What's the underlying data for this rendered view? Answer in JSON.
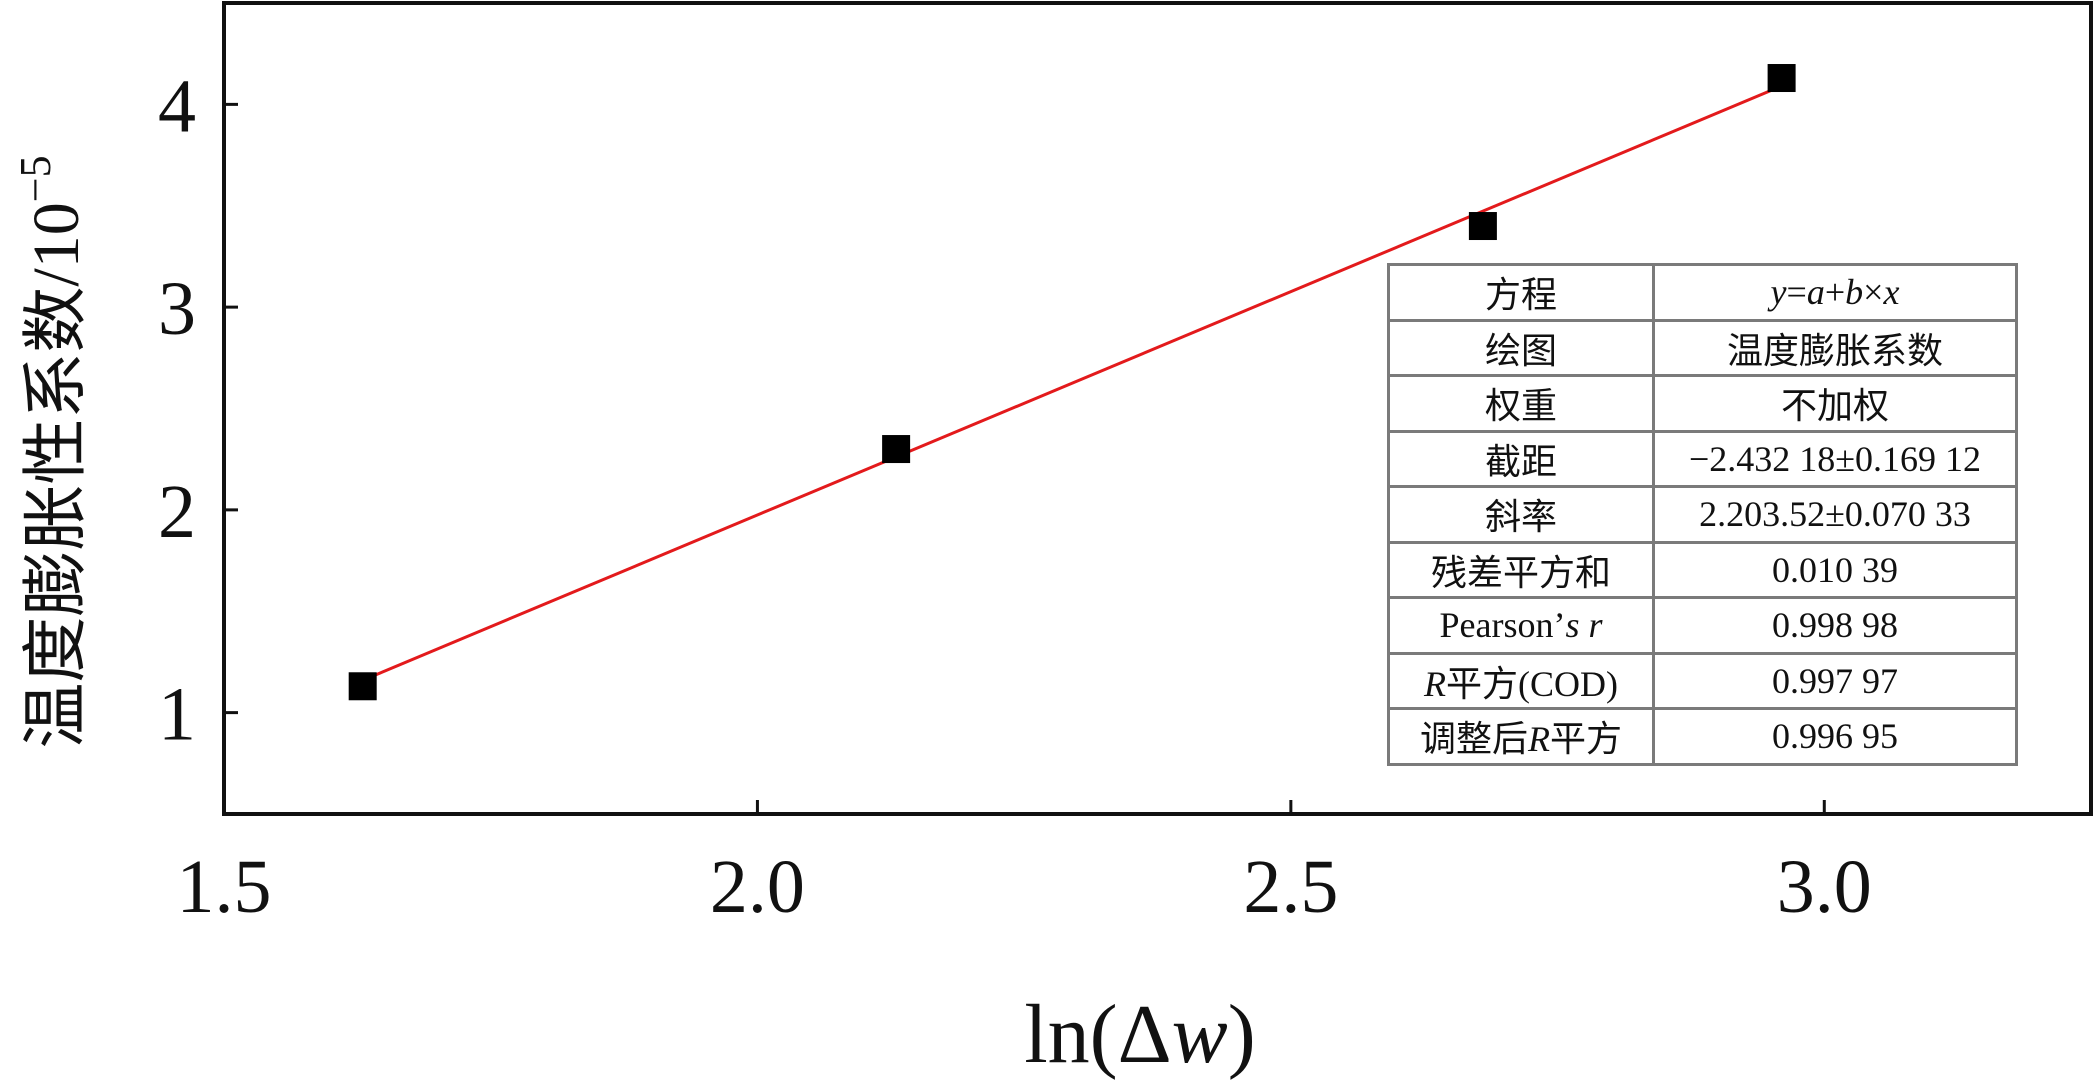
{
  "chart_data": {
    "type": "scatter",
    "xlabel_pre": "ln(Δ",
    "xlabel_var": "w",
    "xlabel_post": ")",
    "ylabel": "温度膨胀性系数/10",
    "ylabel_exp": "−5",
    "xlim": [
      1.5,
      3.25
    ],
    "ylim": [
      0.5,
      4.5
    ],
    "xticks": [
      1.5,
      2.0,
      2.5,
      3.0
    ],
    "xtick_labels": [
      "1.5",
      "2.0",
      "2.5",
      "3.0"
    ],
    "yticks": [
      1,
      2,
      3,
      4
    ],
    "ytick_labels": [
      "1",
      "2",
      "3",
      "4"
    ],
    "points": [
      {
        "x": 1.63,
        "y": 1.13
      },
      {
        "x": 2.13,
        "y": 2.3
      },
      {
        "x": 2.68,
        "y": 3.4
      },
      {
        "x": 2.96,
        "y": 4.13
      }
    ],
    "fit": {
      "intercept": -2.43218,
      "slope": 2.20352,
      "x_range": [
        1.63,
        2.96
      ],
      "color": "#e31a1c"
    },
    "marker_color": "#000000",
    "grid": false,
    "table": [
      {
        "key": "方程",
        "value": "y=a+b×x"
      },
      {
        "key": "绘图",
        "value": "温度膨胀系数"
      },
      {
        "key": "权重",
        "value": "不加权"
      },
      {
        "key": "截距",
        "value": "−2.432 18±0.169 12"
      },
      {
        "key": "斜率",
        "value": "2.203.52±0.070 33"
      },
      {
        "key": "残差平方和",
        "value": "0.010 39"
      },
      {
        "key": "Pearson’s r",
        "value": "0.998 98"
      },
      {
        "key": "R平方(COD)",
        "value": "0.997 97"
      },
      {
        "key": "调整后R平方",
        "value": "0.996 95"
      }
    ]
  }
}
